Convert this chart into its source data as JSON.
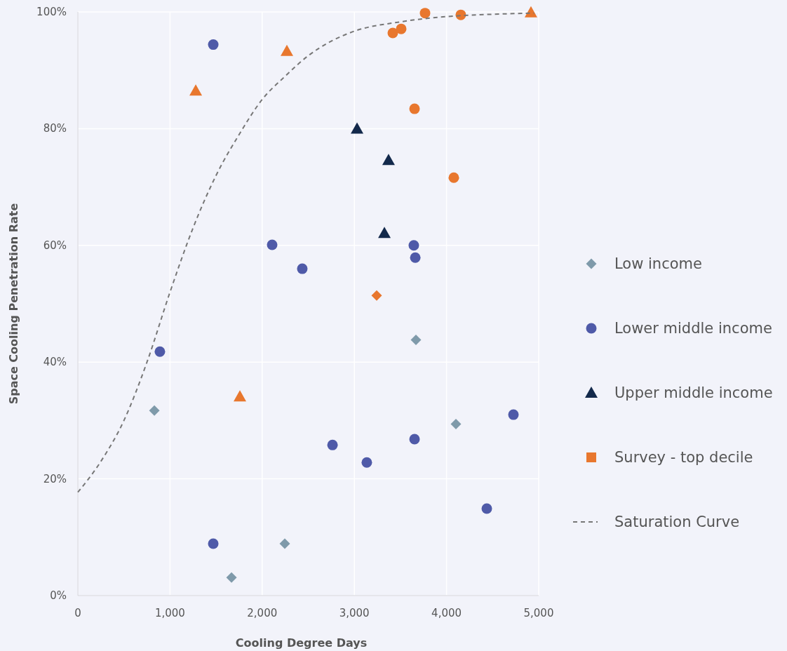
{
  "chart_data": {
    "type": "scatter",
    "xlabel": "Cooling Degree Days",
    "ylabel": "Space Cooling Penetration Rate",
    "xlim": [
      0,
      5000
    ],
    "ylim": [
      0,
      100
    ],
    "xticks": [
      0,
      {
        "value": 1000,
        "label": "1,000"
      },
      {
        "value": 2000,
        "label": "2,000"
      },
      {
        "value": 3000,
        "label": "3,000"
      },
      {
        "value": 4000,
        "label": "4,000"
      },
      {
        "value": 5000,
        "label": "5,000"
      }
    ],
    "yticks": [
      {
        "value": 0,
        "label": "0%"
      },
      {
        "value": 20,
        "label": "20%"
      },
      {
        "value": 40,
        "label": "40%"
      },
      {
        "value": 60,
        "label": "60%"
      },
      {
        "value": 80,
        "label": "80%"
      },
      {
        "value": 100,
        "label": "100%"
      }
    ],
    "grid": true,
    "legend": "right",
    "series": [
      {
        "name": "Low income",
        "color": "#7f9aaa",
        "marker": "diamond",
        "x": [
          830,
          2245,
          1667,
          3668,
          4102
        ],
        "values": [
          31.7,
          8.9,
          3.1,
          43.8,
          29.4
        ]
      },
      {
        "name": "Lower middle income",
        "color": "#4f5aa8",
        "marker": "circle",
        "x": [
          1469,
          890,
          2108,
          2435,
          2763,
          3135,
          3645,
          3661,
          3653,
          1469,
          4437,
          4726
        ],
        "values": [
          94.4,
          41.8,
          60.1,
          56.0,
          25.8,
          22.8,
          60.0,
          57.9,
          26.8,
          8.9,
          14.9,
          31.0
        ]
      },
      {
        "name": "Upper middle income",
        "color": "#13294b",
        "marker": "triangle",
        "x": [
          3029,
          3371,
          3326
        ],
        "values": [
          80.0,
          74.6,
          62.1
        ]
      },
      {
        "name": "Survey - top decile",
        "color": "#e8772e",
        "marker": "square"
      },
      {
        "color": "#e8772e",
        "marker": "triangle",
        "x": [
          1279,
          2268,
          1758,
          4916
        ],
        "values": [
          86.5,
          93.3,
          34.1,
          99.9
        ]
      },
      {
        "color": "#e8772e",
        "marker": "circle",
        "x": [
          3417,
          3508,
          3767,
          4155,
          3653,
          4079
        ],
        "values": [
          96.4,
          97.1,
          99.8,
          99.5,
          83.4,
          71.6
        ]
      },
      {
        "color": "#e8772e",
        "marker": "diamond",
        "x": [
          3242
        ],
        "values": [
          51.4
        ]
      },
      {
        "name": "Saturation Curve",
        "type": "line",
        "color": "#777777",
        "line_style": "dashed",
        "marker": "none",
        "x": [
          0,
          250,
          500,
          750,
          1000,
          1250,
          1500,
          1750,
          2000,
          2250,
          2500,
          2750,
          3000,
          3500,
          4000,
          4500,
          4950
        ],
        "values": [
          17.7,
          23,
          30,
          40,
          52,
          63,
          72,
          79,
          85,
          89,
          92.5,
          95,
          96.7,
          98.3,
          99.2,
          99.6,
          99.8
        ]
      }
    ]
  }
}
